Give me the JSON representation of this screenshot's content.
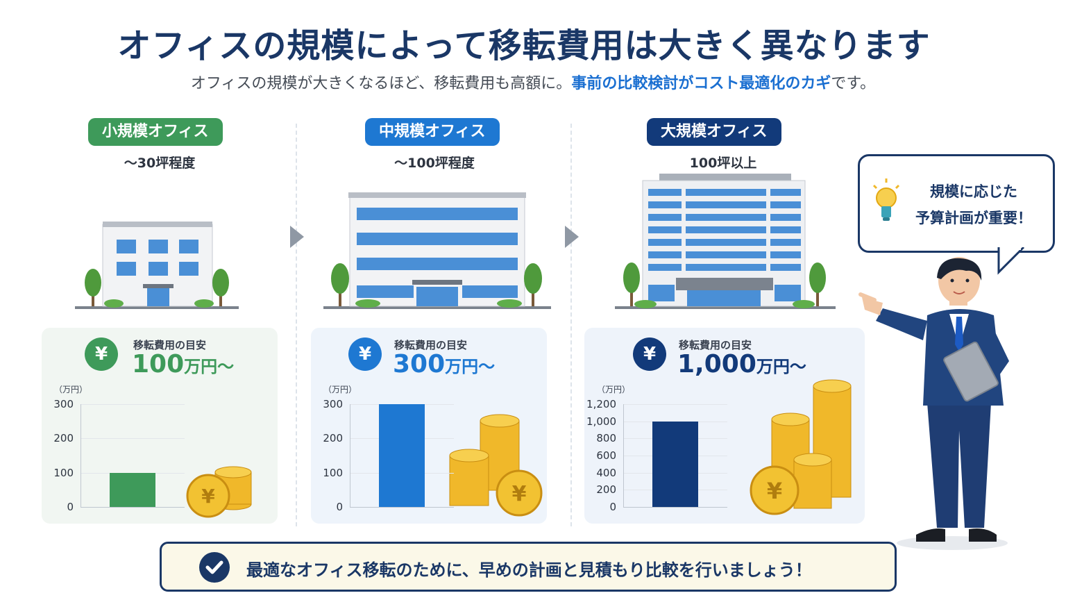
{
  "title": "オフィスの規模によって移転費用は大きく異なります",
  "subtitle": {
    "part1": "オフィスの規模が大きくなるほど、移転費用も高額に。",
    "highlight": "事前の比較検討がコスト最適化のカギ",
    "part2": "です。"
  },
  "columns": [
    {
      "badge": "小規模オフィス",
      "size": "～30坪程度",
      "cost_label": "移転費用の目安",
      "cost_value": "100",
      "cost_suffix": "万円～",
      "unit": "（万円）",
      "ticks": [
        "300",
        "200",
        "100",
        "0"
      ],
      "bar_value": 100,
      "bar_max": 300,
      "color": "#3e9a5a",
      "card_bg": "#f1f6f2"
    },
    {
      "badge": "中規模オフィス",
      "size": "～100坪程度",
      "cost_label": "移転費用の目安",
      "cost_value": "300",
      "cost_suffix": "万円～",
      "unit": "（万円）",
      "ticks": [
        "300",
        "200",
        "100",
        "0"
      ],
      "bar_value": 300,
      "bar_max": 300,
      "color": "#1e78d2",
      "card_bg": "#eef4fb"
    },
    {
      "badge": "大規模オフィス",
      "size": "100坪以上",
      "cost_label": "移転費用の目安",
      "cost_value": "1,000",
      "cost_suffix": "万円～",
      "unit": "（万円）",
      "ticks": [
        "1,200",
        "1,000",
        "800",
        "600",
        "400",
        "200",
        "0"
      ],
      "bar_value": 1000,
      "bar_max": 1200,
      "color": "#123a7a",
      "card_bg": "#eef3fa"
    }
  ],
  "bubble": {
    "line1": "規模に応じた",
    "line2": "予算計画が重要！"
  },
  "footer": "最適なオフィス移転のために、早めの計画と見積もり比較を行いましょう！",
  "chart_data": [
    {
      "type": "bar",
      "categories": [
        "小規模オフィス"
      ],
      "values": [
        100
      ],
      "ylabel": "（万円）",
      "ylim": [
        0,
        300
      ]
    },
    {
      "type": "bar",
      "categories": [
        "中規模オフィス"
      ],
      "values": [
        300
      ],
      "ylabel": "（万円）",
      "ylim": [
        0,
        300
      ]
    },
    {
      "type": "bar",
      "categories": [
        "大規模オフィス"
      ],
      "values": [
        1000
      ],
      "ylabel": "（万円）",
      "ylim": [
        0,
        1200
      ]
    }
  ]
}
